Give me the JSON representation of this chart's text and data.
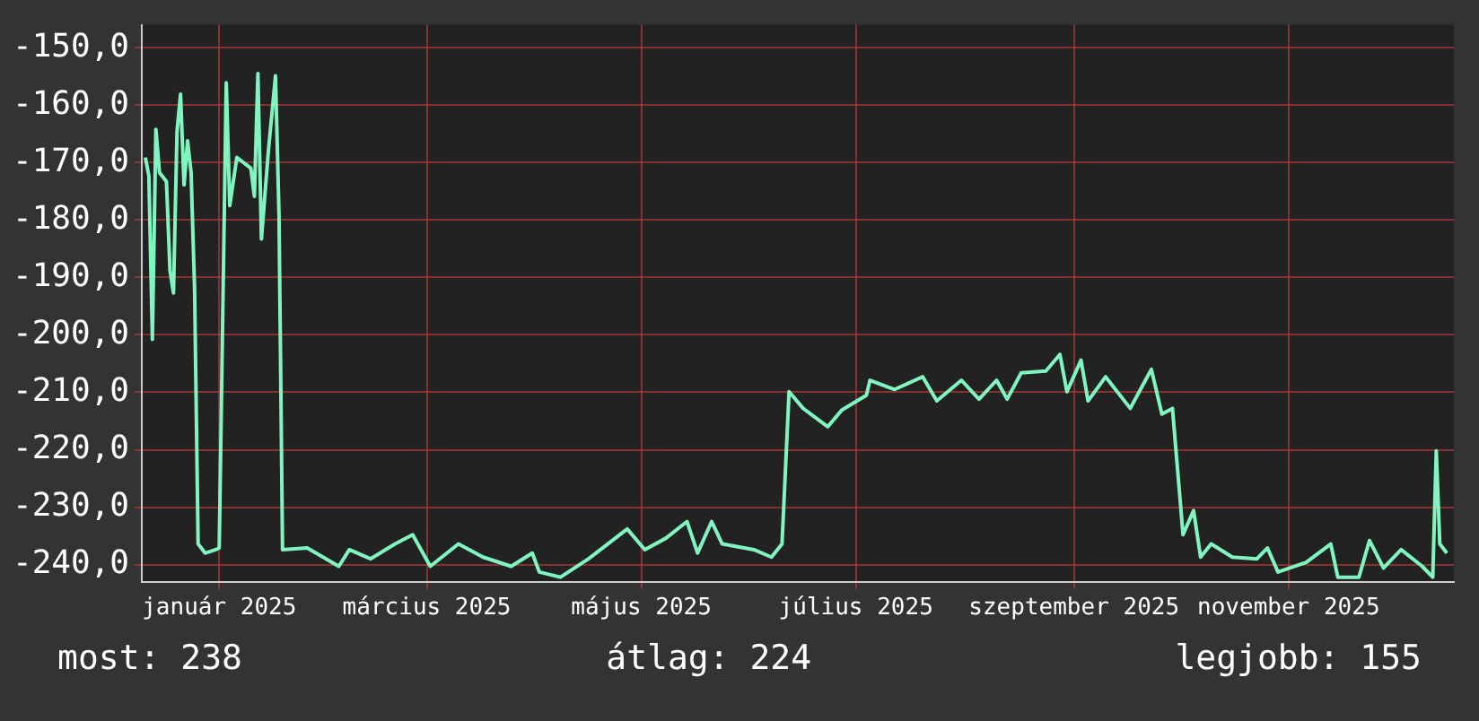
{
  "chart_data": {
    "type": "line",
    "color": "#80f5c0",
    "grid": true,
    "legend": false,
    "marker": "none",
    "line_style": "solid",
    "xlim": [
      "2024-12-10",
      "2025-12-18"
    ],
    "xticks": [
      {
        "value": "2025-01-01",
        "label": "január 2025"
      },
      {
        "value": "2025-03-01",
        "label": "március 2025"
      },
      {
        "value": "2025-05-01",
        "label": "május 2025"
      },
      {
        "value": "2025-07-01",
        "label": "július 2025"
      },
      {
        "value": "2025-09-01",
        "label": "szeptember 2025"
      },
      {
        "value": "2025-11-01",
        "label": "november 2025"
      }
    ],
    "ylim": [
      -243,
      -146
    ],
    "yticks": [
      {
        "value": -150,
        "label": "-150,0"
      },
      {
        "value": -160,
        "label": "-160,0"
      },
      {
        "value": -170,
        "label": "-170,0"
      },
      {
        "value": -180,
        "label": "-180,0"
      },
      {
        "value": -190,
        "label": "-190,0"
      },
      {
        "value": -200,
        "label": "-200,0"
      },
      {
        "value": -210,
        "label": "-210,0"
      },
      {
        "value": -220,
        "label": "-220,0"
      },
      {
        "value": -230,
        "label": "-230,0"
      },
      {
        "value": -240,
        "label": "-240,0"
      }
    ],
    "x": [
      "2024-12-11",
      "2024-12-12",
      "2024-12-13",
      "2024-12-14",
      "2024-12-15",
      "2024-12-17",
      "2024-12-18",
      "2024-12-19",
      "2024-12-20",
      "2024-12-21",
      "2024-12-22",
      "2024-12-23",
      "2024-12-24",
      "2024-12-25",
      "2024-12-26",
      "2024-12-28",
      "2024-12-31",
      "2025-01-01",
      "2025-01-03",
      "2025-01-04",
      "2025-01-06",
      "2025-01-10",
      "2025-01-11",
      "2025-01-12",
      "2025-01-13",
      "2025-01-15",
      "2025-01-17",
      "2025-01-18",
      "2025-01-19",
      "2025-01-26",
      "2025-02-04",
      "2025-02-07",
      "2025-02-13",
      "2025-02-20",
      "2025-02-25",
      "2025-03-02",
      "2025-03-10",
      "2025-03-17",
      "2025-03-25",
      "2025-03-31",
      "2025-04-02",
      "2025-04-08",
      "2025-04-16",
      "2025-04-27",
      "2025-05-02",
      "2025-05-08",
      "2025-05-14",
      "2025-05-17",
      "2025-05-21",
      "2025-05-24",
      "2025-06-02",
      "2025-06-07",
      "2025-06-10",
      "2025-06-12",
      "2025-06-16",
      "2025-06-23",
      "2025-06-27",
      "2025-07-04",
      "2025-07-05",
      "2025-07-12",
      "2025-07-20",
      "2025-07-24",
      "2025-07-31",
      "2025-08-05",
      "2025-08-10",
      "2025-08-13",
      "2025-08-17",
      "2025-08-24",
      "2025-08-28",
      "2025-08-30",
      "2025-09-03",
      "2025-09-05",
      "2025-09-10",
      "2025-09-17",
      "2025-09-23",
      "2025-09-26",
      "2025-09-29",
      "2025-10-02",
      "2025-10-05",
      "2025-10-07",
      "2025-10-10",
      "2025-10-16",
      "2025-10-23",
      "2025-10-26",
      "2025-10-29",
      "2025-11-06",
      "2025-11-13",
      "2025-11-15",
      "2025-11-21",
      "2025-11-24",
      "2025-11-28",
      "2025-12-03",
      "2025-12-09",
      "2025-12-12",
      "2025-12-13",
      "2025-12-14",
      "2025-12-16"
    ],
    "values": [
      -169.1,
      -172.3,
      -200.8,
      -164.2,
      -171.7,
      -173.3,
      -188.8,
      -192.7,
      -164.6,
      -158.1,
      -173.9,
      -166.2,
      -171.7,
      -192.1,
      -236.4,
      -238.0,
      -237.4,
      -237.1,
      -156.1,
      -177.5,
      -169.1,
      -171.0,
      -175.9,
      -154.5,
      -183.3,
      -167.8,
      -154.9,
      -179.1,
      -237.4,
      -237.1,
      -240.3,
      -237.4,
      -239.0,
      -236.4,
      -234.8,
      -240.3,
      -236.4,
      -238.7,
      -240.3,
      -238.0,
      -241.3,
      -242.2,
      -239.0,
      -233.8,
      -237.4,
      -235.4,
      -232.5,
      -238.0,
      -232.5,
      -236.4,
      -237.4,
      -238.7,
      -236.4,
      -209.9,
      -212.8,
      -216.0,
      -213.1,
      -210.5,
      -207.9,
      -209.5,
      -207.3,
      -211.5,
      -207.9,
      -211.2,
      -207.9,
      -211.2,
      -206.6,
      -206.3,
      -203.4,
      -209.9,
      -204.4,
      -211.5,
      -207.3,
      -212.8,
      -206.0,
      -213.8,
      -212.8,
      -234.8,
      -230.6,
      -238.7,
      -236.4,
      -238.7,
      -239.0,
      -237.1,
      -241.3,
      -239.6,
      -236.4,
      -242.2,
      -242.2,
      -235.8,
      -240.6,
      -237.4,
      -240.3,
      -242.2,
      -220.2,
      -236.4,
      -238.0
    ],
    "annotations": [
      "most: 238",
      "átlag: 224",
      "legjobb: 155"
    ]
  }
}
